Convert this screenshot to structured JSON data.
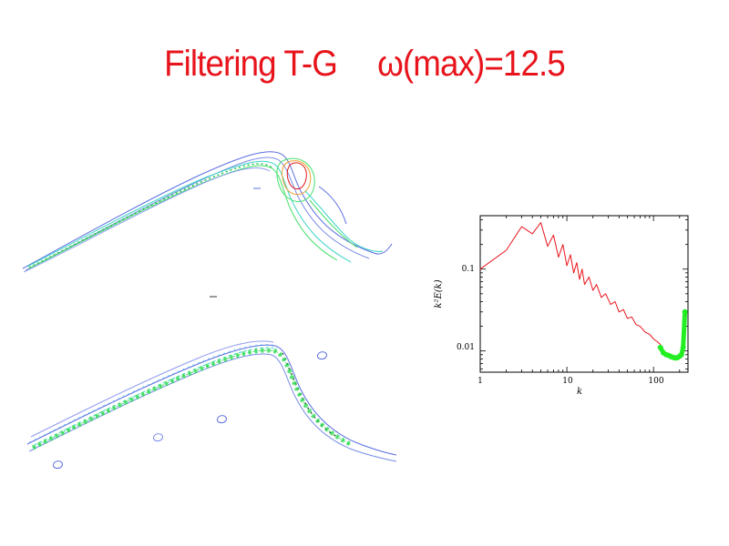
{
  "slide": {
    "title_left": "Filtering T-G",
    "title_right": "ω(max)=12.5"
  },
  "chart_data": {
    "type": "line",
    "title": "",
    "xlabel": "k",
    "ylabel": "k²E(k)",
    "x_scale": "log",
    "y_scale": "log",
    "xlim": [
      1,
      250
    ],
    "ylim": [
      0.0055,
      0.45
    ],
    "x_ticks": [
      "1",
      "10",
      "100"
    ],
    "y_ticks": [
      "0.1",
      "0.01"
    ],
    "series": [
      {
        "color": "#e8141c",
        "style": "line",
        "x": [
          1,
          2,
          3,
          4,
          5,
          6,
          7,
          8,
          9,
          10,
          11,
          12,
          13,
          14,
          15,
          16,
          18,
          20,
          22,
          25,
          28,
          32,
          36,
          40,
          45,
          50,
          56,
          63,
          70,
          80,
          90,
          100,
          110,
          120
        ],
        "y": [
          0.1,
          0.17,
          0.33,
          0.27,
          0.37,
          0.19,
          0.26,
          0.14,
          0.2,
          0.11,
          0.15,
          0.09,
          0.12,
          0.075,
          0.1,
          0.065,
          0.08,
          0.055,
          0.065,
          0.045,
          0.05,
          0.037,
          0.04,
          0.03,
          0.032,
          0.025,
          0.026,
          0.021,
          0.02,
          0.017,
          0.016,
          0.014,
          0.013,
          0.012
        ]
      },
      {
        "color": "#22ee22",
        "style": "thick",
        "x": [
          120,
          130,
          140,
          150,
          160,
          170,
          180,
          190,
          200,
          210,
          220,
          230
        ],
        "y": [
          0.011,
          0.0095,
          0.009,
          0.0088,
          0.0085,
          0.0083,
          0.0082,
          0.0083,
          0.0086,
          0.009,
          0.011,
          0.03
        ]
      }
    ]
  }
}
